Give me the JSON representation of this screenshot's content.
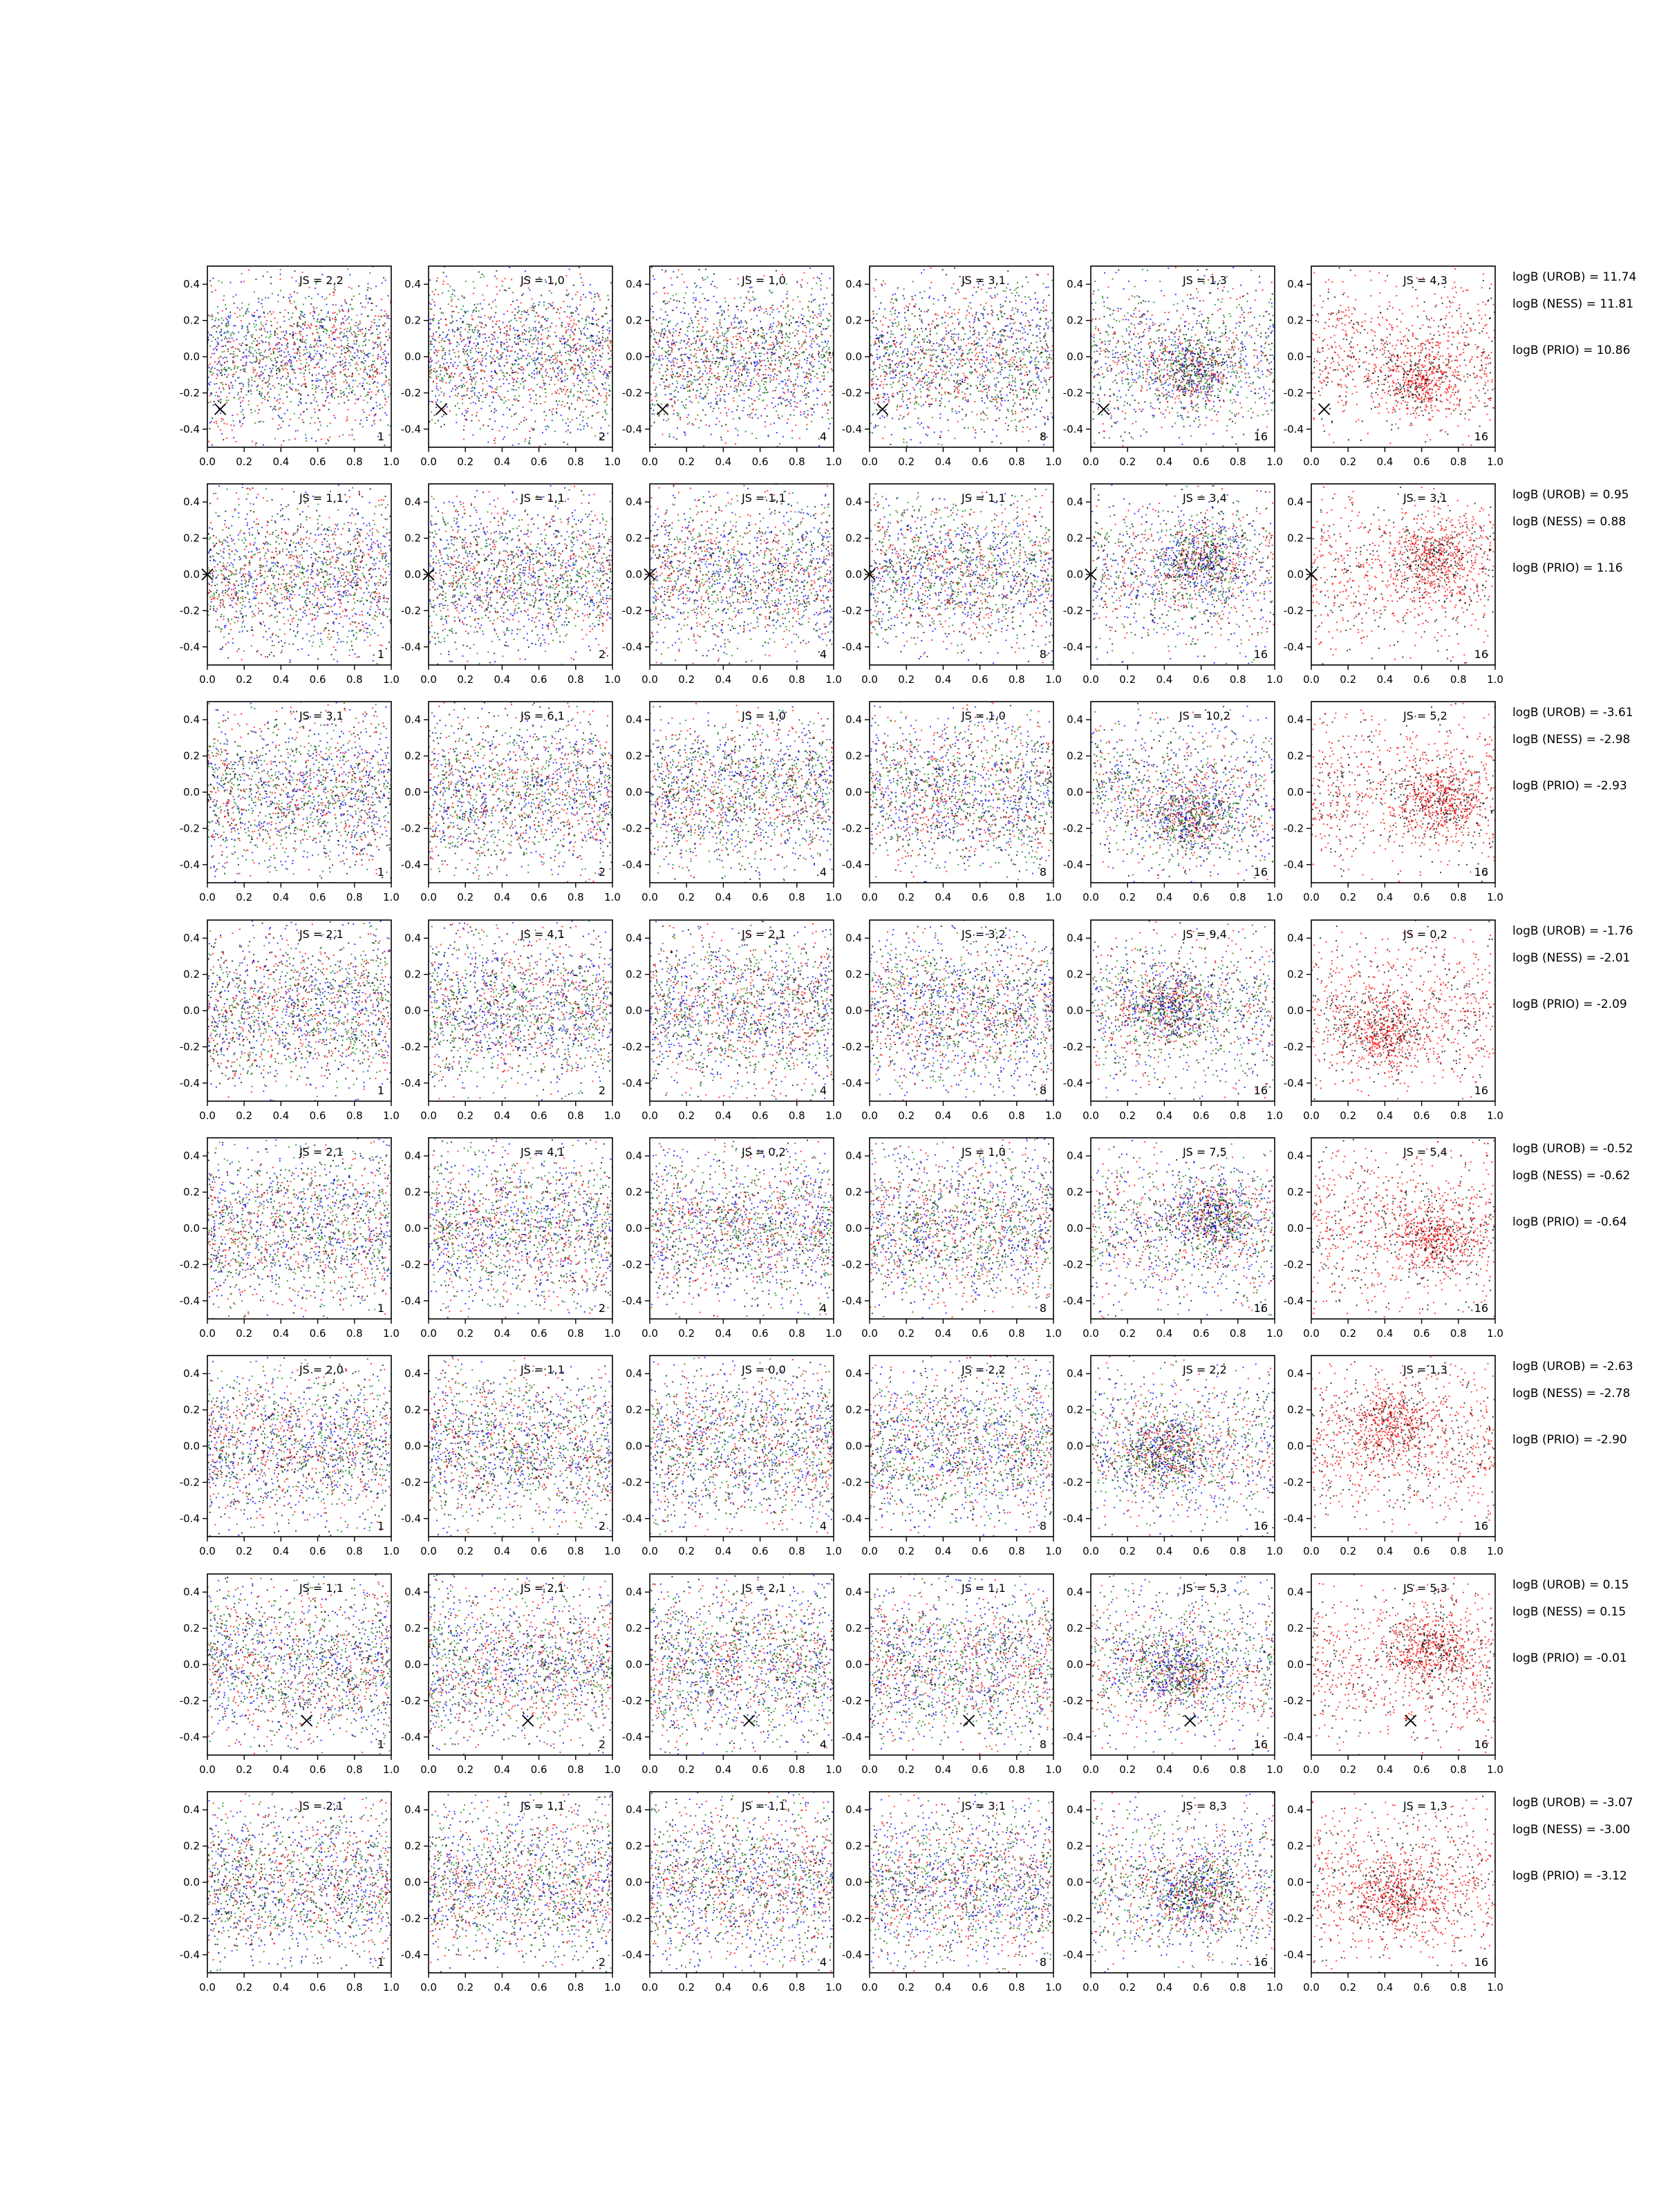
{
  "figure": {
    "colors": {
      "red": "#ff0000",
      "green": "#008000",
      "blue": "#0000ff",
      "black": "#000000",
      "axis": "#000000"
    }
  },
  "chart_data": {
    "type": "scatter",
    "grid": false,
    "xlim": [
      0,
      1
    ],
    "ylim": [
      -0.5,
      0.5
    ],
    "xticks": [
      "0.0",
      "0.2",
      "0.4",
      "0.6",
      "0.8",
      "1.0"
    ],
    "yticks": [
      "-0.4",
      "-0.2",
      "0.0",
      "0.2",
      "0.4"
    ],
    "column_corner_labels": [
      "1",
      "2",
      "4",
      "8",
      "16",
      "16"
    ],
    "rows": [
      {
        "js_labels": [
          "JS = 2,2",
          "JS = 1,0",
          "JS = 1,0",
          "JS = 3,1",
          "JS = 1,3",
          "JS = 4,3"
        ],
        "marker": [
          0.07,
          -0.29
        ],
        "logB": [
          "logB (UROB) = 11.74",
          "logB (NESS) = 11.81",
          "logB (PRIO) = 10.86"
        ]
      },
      {
        "js_labels": [
          "JS = 1,1",
          "JS = 1,1",
          "JS = 1,1",
          "JS = 1,1",
          "JS = 3,4",
          "JS = 3,1"
        ],
        "marker": [
          0.0,
          0.0
        ],
        "logB": [
          "logB (UROB) = 0.95",
          "logB (NESS) = 0.88",
          "logB (PRIO) = 1.16"
        ]
      },
      {
        "js_labels": [
          "JS = 3,1",
          "JS = 6,1",
          "JS = 1,0",
          "JS = 1,0",
          "JS = 10,2",
          "JS = 5,2"
        ],
        "marker": null,
        "logB": [
          "logB (UROB) = -3.61",
          "logB (NESS) = -2.98",
          "logB (PRIO) = -2.93"
        ]
      },
      {
        "js_labels": [
          "JS = 2,1",
          "JS = 4,1",
          "JS = 2,1",
          "JS = 3,2",
          "JS = 9,4",
          "JS = 0,2"
        ],
        "marker": null,
        "logB": [
          "logB (UROB) = -1.76",
          "logB (NESS) = -2.01",
          "logB (PRIO) = -2.09"
        ]
      },
      {
        "js_labels": [
          "JS = 2,1",
          "JS = 4,1",
          "JS = 0,2",
          "JS = 1,0",
          "JS = 7,5",
          "JS = 5,4"
        ],
        "marker": null,
        "logB": [
          "logB (UROB) = -0.52",
          "logB (NESS) = -0.62",
          "logB (PRIO) = -0.64"
        ]
      },
      {
        "js_labels": [
          "JS = 2,0",
          "JS = 1,1",
          "JS = 0,0",
          "JS = 2,2",
          "JS = 2,2",
          "JS = 1,3"
        ],
        "marker": null,
        "logB": [
          "logB (UROB) = -2.63",
          "logB (NESS) = -2.78",
          "logB (PRIO) = -2.90"
        ]
      },
      {
        "js_labels": [
          "JS = 1,1",
          "JS = 2,1",
          "JS = 2,1",
          "JS = 1,1",
          "JS = 5,3",
          "JS = 5,3"
        ],
        "marker": [
          0.54,
          -0.31
        ],
        "logB": [
          "logB (UROB) = 0.15",
          "logB (NESS) = 0.15",
          "logB (PRIO) = -0.01"
        ]
      },
      {
        "js_labels": [
          "JS = 2,1",
          "JS = 1,1",
          "JS = 1,1",
          "JS = 3,1",
          "JS = 8,3",
          "JS = 1,3"
        ],
        "marker": null,
        "logB": [
          "logB (UROB) = -3.07",
          "logB (NESS) = -3.00",
          "logB (PRIO) = -3.12"
        ]
      }
    ]
  }
}
